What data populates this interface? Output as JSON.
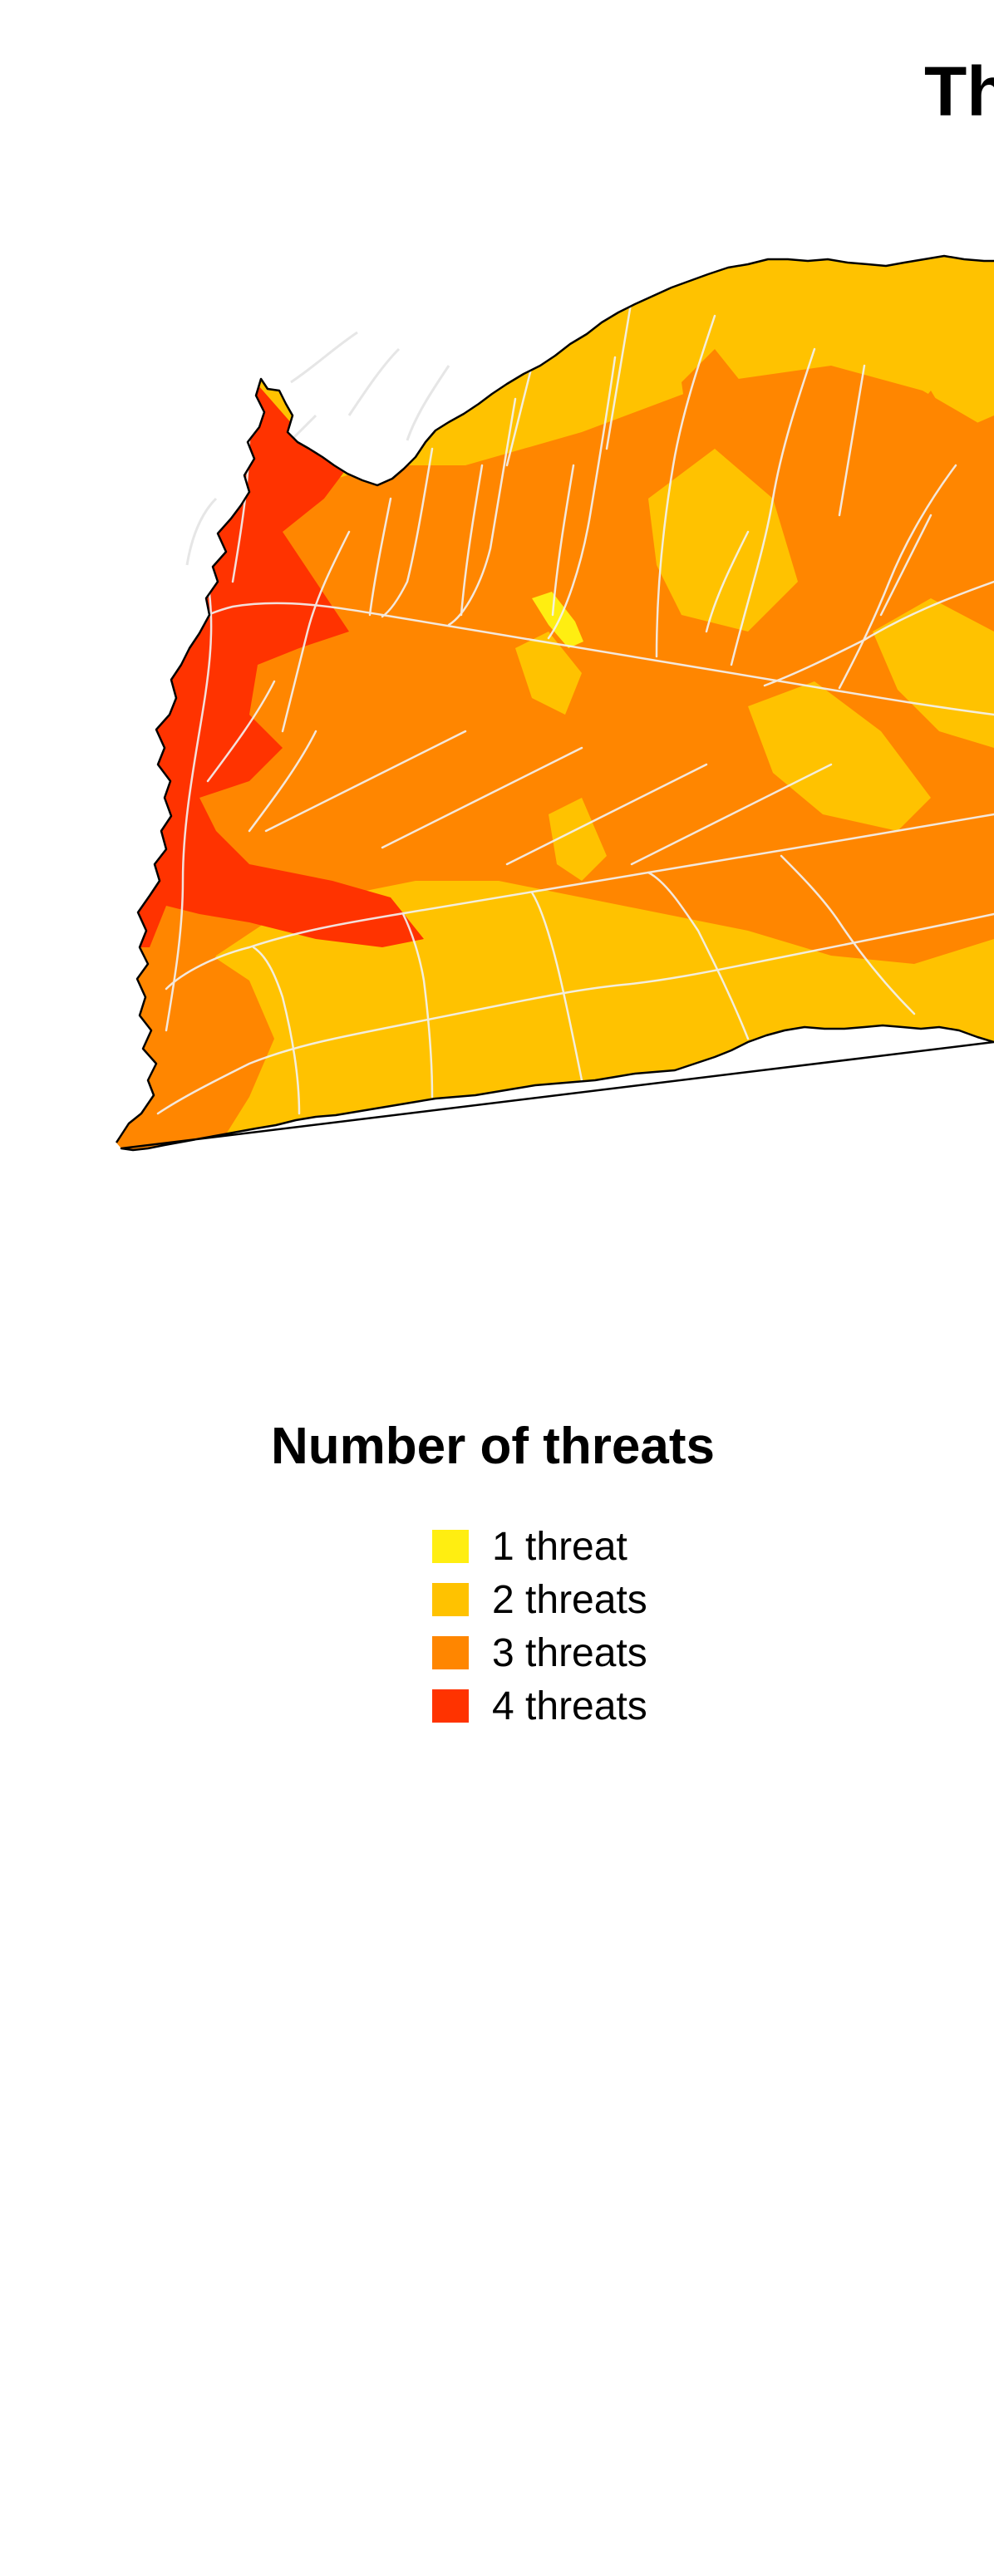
{
  "map": {
    "title": "Th",
    "colors": {
      "one_threat": "#ffee11",
      "two_threats": "#ffc200",
      "three_threats": "#ff8600",
      "four_threats": "#ff3300",
      "rivers": "#f3f3f3",
      "outline": "#000000"
    }
  },
  "legend": {
    "title": "Number of threats",
    "items": [
      {
        "label": "1 threat",
        "color": "#ffee11"
      },
      {
        "label": "2 threats",
        "color": "#ffc200"
      },
      {
        "label": "3 threats",
        "color": "#ff8600"
      },
      {
        "label": "4 threats",
        "color": "#ff3300"
      }
    ]
  }
}
